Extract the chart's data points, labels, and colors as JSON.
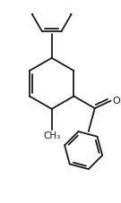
{
  "background_color": "#ffffff",
  "line_color": "#1a1a1a",
  "line_width": 1.3,
  "dbo": 0.055,
  "font_size": 7.5,
  "text_color": "#1a1a1a",
  "xlim": [
    -1.1,
    1.3
  ],
  "ylim": [
    -2.1,
    1.7
  ]
}
